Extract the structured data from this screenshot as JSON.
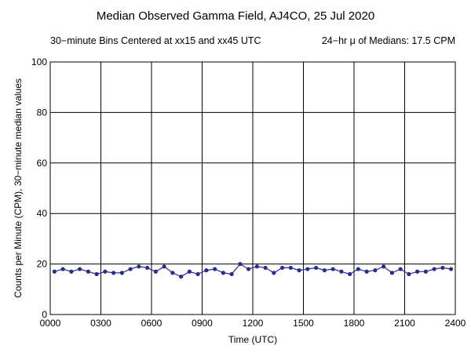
{
  "chart_data": {
    "type": "line",
    "title": "Median Observed Gamma Field, AJ4CO, 25 Jul 2020",
    "subtitle_left": "30−minute Bins Centered at xx15 and xx45 UTC",
    "subtitle_right": "24−hr μ of Medians: 17.5 CPM",
    "xlabel": "Time (UTC)",
    "ylabel": "Counts per Minute (CPM), 30−minute median values",
    "xlim": [
      0,
      24
    ],
    "ylim": [
      0,
      100
    ],
    "x_tick_values": [
      0,
      3,
      6,
      9,
      12,
      15,
      18,
      21,
      24
    ],
    "x_tick_labels": [
      "0000",
      "0300",
      "0600",
      "0900",
      "1200",
      "1500",
      "1800",
      "2100",
      "2400"
    ],
    "y_tick_values": [
      0,
      20,
      40,
      60,
      80,
      100
    ],
    "y_tick_labels": [
      "0",
      "20",
      "40",
      "60",
      "80",
      "100"
    ],
    "grid": true,
    "series_color": "#2b2b8a",
    "series": [
      {
        "x": [
          0.25,
          0.75,
          1.25,
          1.75,
          2.25,
          2.75,
          3.25,
          3.75,
          4.25,
          4.75,
          5.25,
          5.75,
          6.25,
          6.75,
          7.25,
          7.75,
          8.25,
          8.75,
          9.25,
          9.75,
          10.25,
          10.75,
          11.25,
          11.75,
          12.25,
          12.75,
          13.25,
          13.75,
          14.25,
          14.75,
          15.25,
          15.75,
          16.25,
          16.75,
          17.25,
          17.75,
          18.25,
          18.75,
          19.25,
          19.75,
          20.25,
          20.75,
          21.25,
          21.75,
          22.25,
          22.75,
          23.25,
          23.75
        ],
        "values": [
          17,
          18,
          17,
          18,
          17,
          16,
          17,
          16.5,
          16.5,
          18,
          19,
          18.5,
          17,
          19,
          16.5,
          15,
          17,
          16,
          17.5,
          18,
          16.5,
          16,
          20,
          18,
          19,
          18.5,
          16.5,
          18.5,
          18.5,
          17.5,
          18,
          18.5,
          17.5,
          18,
          17,
          16,
          18,
          17,
          17.5,
          19,
          16.5,
          18,
          16,
          17,
          17,
          18,
          18.5,
          18
        ]
      }
    ]
  }
}
